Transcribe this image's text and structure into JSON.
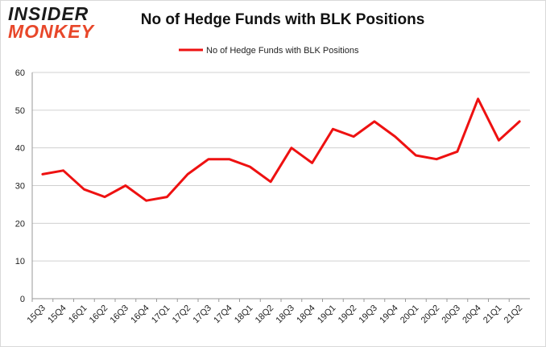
{
  "logo": {
    "line1": "INSIDER",
    "line2": "MONKEY"
  },
  "chart_data": {
    "type": "line",
    "title": "No of Hedge Funds with BLK Positions",
    "xlabel": "",
    "ylabel": "",
    "categories": [
      "15Q3",
      "15Q4",
      "16Q1",
      "16Q2",
      "16Q3",
      "16Q4",
      "17Q1",
      "17Q2",
      "17Q3",
      "17Q4",
      "18Q1",
      "18Q2",
      "18Q3",
      "18Q4",
      "19Q1",
      "19Q2",
      "19Q3",
      "19Q4",
      "20Q1",
      "20Q2",
      "20Q3",
      "20Q4",
      "21Q1",
      "21Q2"
    ],
    "series": [
      {
        "name": "No of Hedge Funds with BLK Positions",
        "color": "#ee1111",
        "values": [
          33,
          34,
          29,
          27,
          30,
          26,
          27,
          33,
          37,
          37,
          35,
          31,
          40,
          36,
          45,
          43,
          47,
          43,
          38,
          37,
          39,
          53,
          42,
          47
        ]
      }
    ],
    "ylim": [
      0,
      60
    ],
    "yticks": [
      0,
      10,
      20,
      30,
      40,
      50,
      60
    ],
    "grid": true,
    "legend": "top-center"
  }
}
